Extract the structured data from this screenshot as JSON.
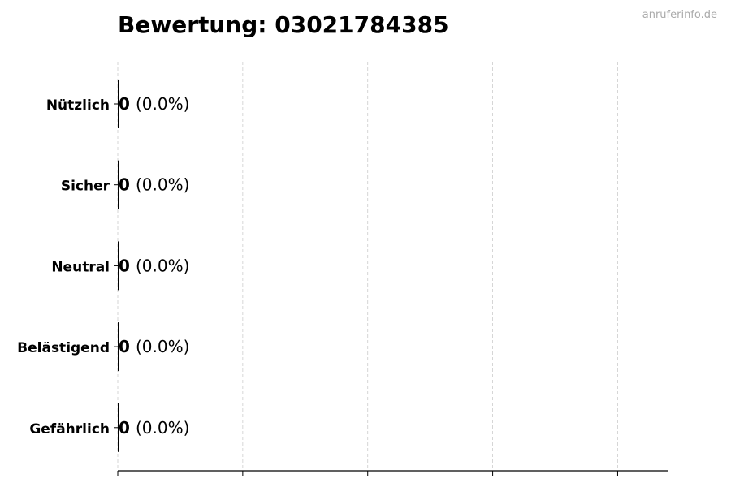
{
  "chart_data": {
    "type": "bar",
    "orientation": "horizontal",
    "title": "Bewertung: 03021784385",
    "watermark": "anruferinfo.de",
    "categories": [
      "Nützlich",
      "Sicher",
      "Neutral",
      "Belästigend",
      "Gefährlich"
    ],
    "values": [
      0,
      0,
      0,
      0,
      0
    ],
    "percent_labels": [
      "(0.0%)",
      "(0.0%)",
      "(0.0%)",
      "(0.0%)",
      "(0.0%)"
    ],
    "xlabel": "",
    "ylabel": "",
    "xlim": [
      0,
      4.4
    ],
    "grid": "x-dashed",
    "bar_color": "#000000",
    "grid_color": "#cccccc"
  }
}
